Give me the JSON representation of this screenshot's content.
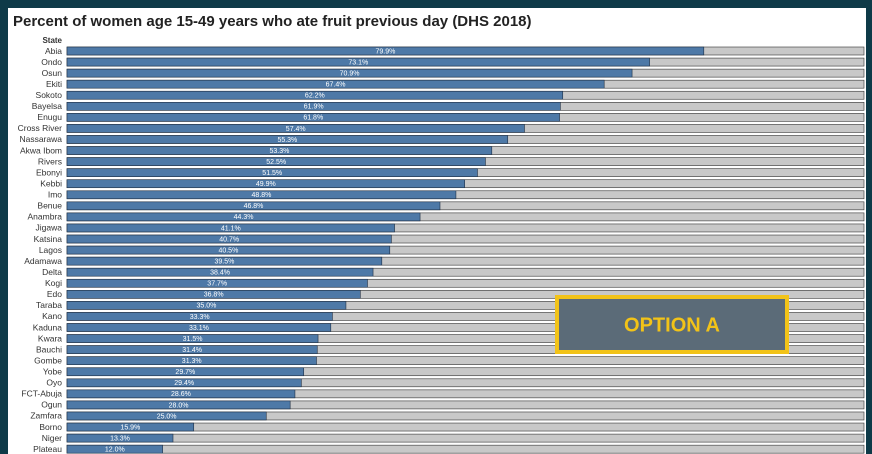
{
  "chart_data": {
    "type": "hbar",
    "title": "Percent of women age 15-49 years who ate fruit previous day (DHS 2018)",
    "y_label": "State",
    "annotation": "OPTION A",
    "color": "#4e79a7",
    "track_color": "#c8c8c8",
    "xlim": [
      0,
      100
    ],
    "categories": [
      "Abia",
      "Ondo",
      "Osun",
      "Ekiti",
      "Sokoto",
      "Bayelsa",
      "Enugu",
      "Cross River",
      "Nassarawa",
      "Akwa Ibom",
      "Rivers",
      "Ebonyi",
      "Kebbi",
      "Imo",
      "Benue",
      "Anambra",
      "Jigawa",
      "Katsina",
      "Lagos",
      "Adamawa",
      "Delta",
      "Kogi",
      "Edo",
      "Taraba",
      "Kano",
      "Kaduna",
      "Kwara",
      "Bauchi",
      "Gombe",
      "Yobe",
      "Oyo",
      "FCT-Abuja",
      "Ogun",
      "Zamfara",
      "Borno",
      "Niger",
      "Plateau"
    ],
    "values": [
      79.9,
      73.1,
      70.9,
      67.4,
      62.2,
      61.9,
      61.8,
      57.4,
      55.3,
      53.3,
      52.5,
      51.5,
      49.9,
      48.8,
      46.8,
      44.3,
      41.1,
      40.7,
      40.5,
      39.5,
      38.4,
      37.7,
      36.8,
      35.0,
      33.3,
      33.1,
      31.5,
      31.4,
      31.3,
      29.7,
      29.4,
      28.6,
      28.0,
      25.0,
      15.9,
      13.3,
      12.0
    ],
    "value_labels": [
      "79.9%",
      "73.1%",
      "70.9%",
      "67.4%",
      "62.2%",
      "61.9%",
      "61.8%",
      "57.4%",
      "55.3%",
      "53.3%",
      "52.5%",
      "51.5%",
      "49.9%",
      "48.8%",
      "46.8%",
      "44.3%",
      "41.1%",
      "40.7%",
      "40.5%",
      "39.5%",
      "38.4%",
      "37.7%",
      "36.8%",
      "35.0%",
      "33.3%",
      "33.1%",
      "31.5%",
      "31.4%",
      "31.3%",
      "29.7%",
      "29.4%",
      "28.6%",
      "28.0%",
      "25.0%",
      "15.9%",
      "13.3%",
      "12.0%"
    ]
  }
}
